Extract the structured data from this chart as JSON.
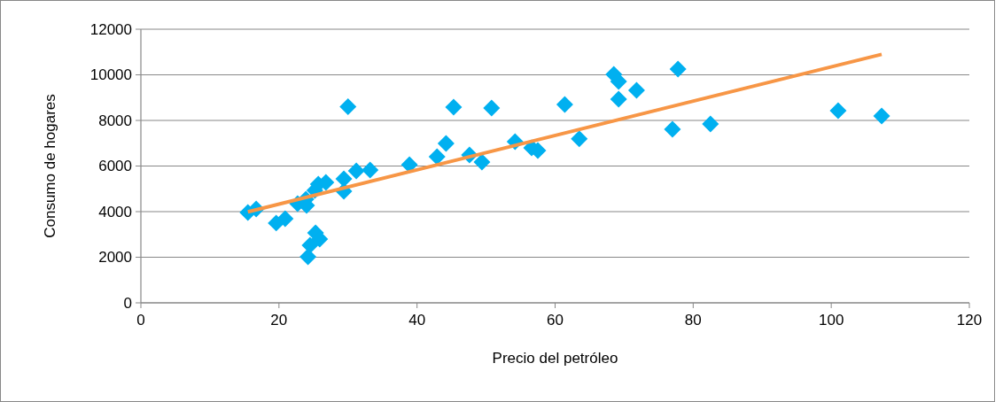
{
  "chart_data": {
    "type": "scatter",
    "xlabel": "Precio del petróleo",
    "ylabel": "Consumo de hogares",
    "xlim": [
      0,
      120
    ],
    "xticks": [
      0,
      20,
      40,
      60,
      80,
      100,
      120
    ],
    "ylim": [
      0,
      12000
    ],
    "yticks": [
      0,
      2000,
      4000,
      6000,
      8000,
      10000,
      12000
    ],
    "grid": "y",
    "series": [
      {
        "color": "#00b0f0",
        "marker": "diamond",
        "x": [
          15.5,
          16.7,
          19.6,
          20.9,
          22.7,
          23.9,
          24.0,
          24.2,
          24.5,
          25.2,
          25.3,
          25.9,
          25.7,
          26.8,
          29.4,
          29.4,
          30.0,
          31.2,
          33.2,
          38.9,
          42.9,
          44.2,
          45.3,
          47.6,
          49.4,
          50.8,
          54.2,
          56.6,
          57.5,
          61.4,
          63.5,
          68.5,
          69.2,
          69.2,
          71.8,
          77.0,
          77.8,
          82.5,
          101.0,
          107.3
        ],
        "values": [
          3960,
          4120,
          3500,
          3690,
          4350,
          4540,
          4270,
          2020,
          2520,
          4930,
          3070,
          2800,
          5200,
          5280,
          5440,
          4890,
          8600,
          5790,
          5830,
          6060,
          6410,
          6990,
          8580,
          6490,
          6170,
          8540,
          7070,
          6800,
          6680,
          8700,
          7190,
          10020,
          9710,
          8930,
          9320,
          7610,
          10250,
          7840,
          8430,
          8190
        ]
      },
      {
        "type": "line",
        "color": "#f79646",
        "marker": "none",
        "x": [
          15.5,
          107.3
        ],
        "values": [
          3990,
          10900
        ]
      }
    ]
  }
}
